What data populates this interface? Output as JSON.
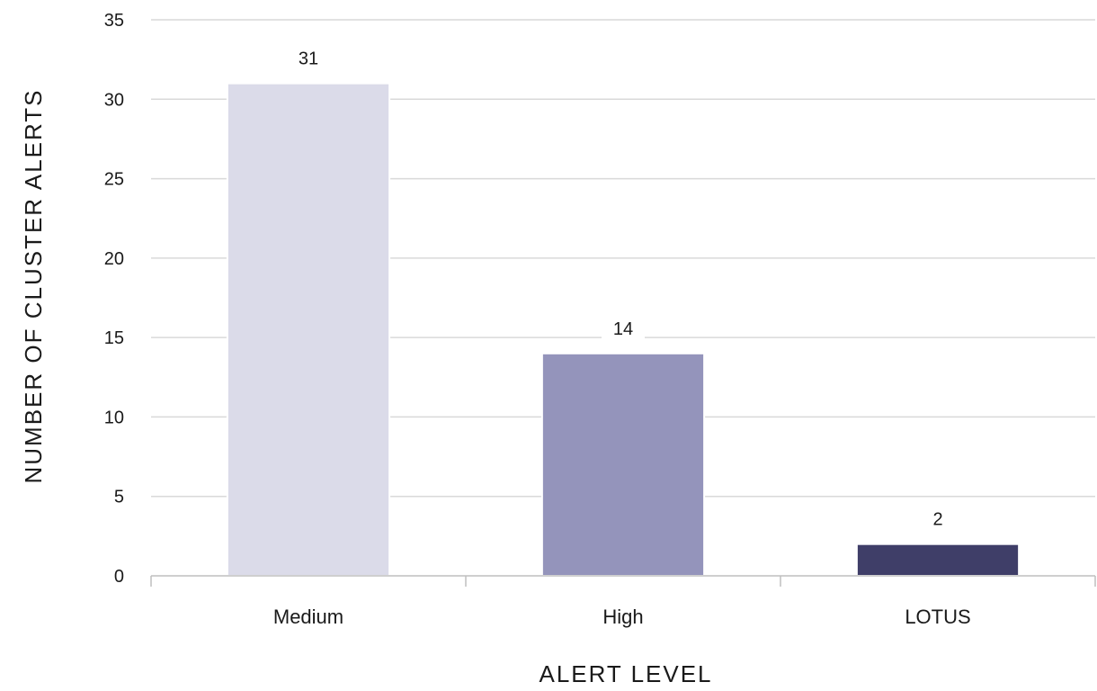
{
  "chart_data": {
    "type": "bar",
    "categories": [
      "Medium",
      "High",
      "LOTUS"
    ],
    "values": [
      31,
      14,
      2
    ],
    "data_labels": [
      "31",
      "14",
      "2"
    ],
    "title": "",
    "xlabel": "ALERT LEVEL",
    "ylabel": "NUMBER OF CLUSTER ALERTS",
    "ylim": [
      0,
      35
    ],
    "yticks": [
      0,
      5,
      10,
      15,
      20,
      25,
      30,
      35
    ],
    "ytick_labels": [
      "0",
      "5",
      "10",
      "15",
      "20",
      "25",
      "30",
      "35"
    ],
    "grid": true,
    "legend": "none",
    "bar_colors": [
      "#dbdbe9",
      "#9494bb",
      "#3f3e68"
    ],
    "grid_color": "#d9d9d9",
    "axis_color": "#bfbfbf"
  }
}
